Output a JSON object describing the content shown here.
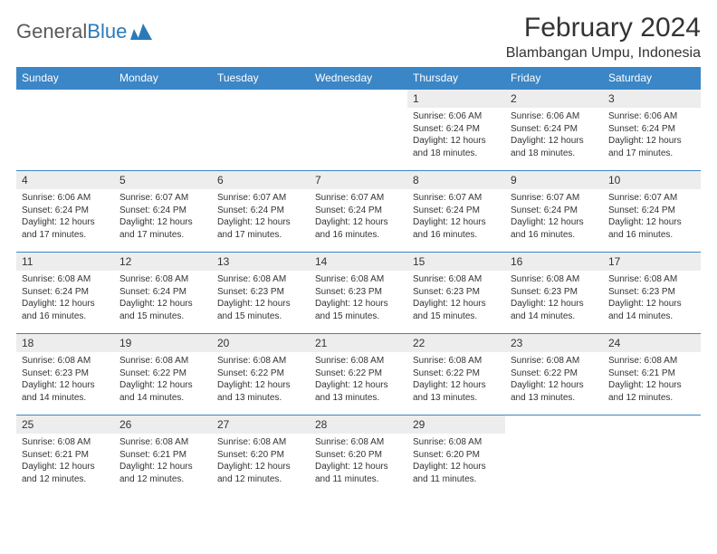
{
  "brand": {
    "text_gray": "General",
    "text_blue": "Blue"
  },
  "header": {
    "month_title": "February 2024",
    "location": "Blambangan Umpu, Indonesia"
  },
  "colors": {
    "header_bg": "#3b86c6",
    "header_text": "#ffffff",
    "daynum_bg": "#ededed",
    "border": "#3b86c6",
    "text": "#333333",
    "brand_gray": "#5a5a5a",
    "brand_blue": "#2a7ab9"
  },
  "days_of_week": [
    "Sunday",
    "Monday",
    "Tuesday",
    "Wednesday",
    "Thursday",
    "Friday",
    "Saturday"
  ],
  "weeks": [
    [
      null,
      null,
      null,
      null,
      {
        "n": "1",
        "sr": "6:06 AM",
        "ss": "6:24 PM",
        "dl": "12 hours and 18 minutes."
      },
      {
        "n": "2",
        "sr": "6:06 AM",
        "ss": "6:24 PM",
        "dl": "12 hours and 18 minutes."
      },
      {
        "n": "3",
        "sr": "6:06 AM",
        "ss": "6:24 PM",
        "dl": "12 hours and 17 minutes."
      }
    ],
    [
      {
        "n": "4",
        "sr": "6:06 AM",
        "ss": "6:24 PM",
        "dl": "12 hours and 17 minutes."
      },
      {
        "n": "5",
        "sr": "6:07 AM",
        "ss": "6:24 PM",
        "dl": "12 hours and 17 minutes."
      },
      {
        "n": "6",
        "sr": "6:07 AM",
        "ss": "6:24 PM",
        "dl": "12 hours and 17 minutes."
      },
      {
        "n": "7",
        "sr": "6:07 AM",
        "ss": "6:24 PM",
        "dl": "12 hours and 16 minutes."
      },
      {
        "n": "8",
        "sr": "6:07 AM",
        "ss": "6:24 PM",
        "dl": "12 hours and 16 minutes."
      },
      {
        "n": "9",
        "sr": "6:07 AM",
        "ss": "6:24 PM",
        "dl": "12 hours and 16 minutes."
      },
      {
        "n": "10",
        "sr": "6:07 AM",
        "ss": "6:24 PM",
        "dl": "12 hours and 16 minutes."
      }
    ],
    [
      {
        "n": "11",
        "sr": "6:08 AM",
        "ss": "6:24 PM",
        "dl": "12 hours and 16 minutes."
      },
      {
        "n": "12",
        "sr": "6:08 AM",
        "ss": "6:24 PM",
        "dl": "12 hours and 15 minutes."
      },
      {
        "n": "13",
        "sr": "6:08 AM",
        "ss": "6:23 PM",
        "dl": "12 hours and 15 minutes."
      },
      {
        "n": "14",
        "sr": "6:08 AM",
        "ss": "6:23 PM",
        "dl": "12 hours and 15 minutes."
      },
      {
        "n": "15",
        "sr": "6:08 AM",
        "ss": "6:23 PM",
        "dl": "12 hours and 15 minutes."
      },
      {
        "n": "16",
        "sr": "6:08 AM",
        "ss": "6:23 PM",
        "dl": "12 hours and 14 minutes."
      },
      {
        "n": "17",
        "sr": "6:08 AM",
        "ss": "6:23 PM",
        "dl": "12 hours and 14 minutes."
      }
    ],
    [
      {
        "n": "18",
        "sr": "6:08 AM",
        "ss": "6:23 PM",
        "dl": "12 hours and 14 minutes."
      },
      {
        "n": "19",
        "sr": "6:08 AM",
        "ss": "6:22 PM",
        "dl": "12 hours and 14 minutes."
      },
      {
        "n": "20",
        "sr": "6:08 AM",
        "ss": "6:22 PM",
        "dl": "12 hours and 13 minutes."
      },
      {
        "n": "21",
        "sr": "6:08 AM",
        "ss": "6:22 PM",
        "dl": "12 hours and 13 minutes."
      },
      {
        "n": "22",
        "sr": "6:08 AM",
        "ss": "6:22 PM",
        "dl": "12 hours and 13 minutes."
      },
      {
        "n": "23",
        "sr": "6:08 AM",
        "ss": "6:22 PM",
        "dl": "12 hours and 13 minutes."
      },
      {
        "n": "24",
        "sr": "6:08 AM",
        "ss": "6:21 PM",
        "dl": "12 hours and 12 minutes."
      }
    ],
    [
      {
        "n": "25",
        "sr": "6:08 AM",
        "ss": "6:21 PM",
        "dl": "12 hours and 12 minutes."
      },
      {
        "n": "26",
        "sr": "6:08 AM",
        "ss": "6:21 PM",
        "dl": "12 hours and 12 minutes."
      },
      {
        "n": "27",
        "sr": "6:08 AM",
        "ss": "6:20 PM",
        "dl": "12 hours and 12 minutes."
      },
      {
        "n": "28",
        "sr": "6:08 AM",
        "ss": "6:20 PM",
        "dl": "12 hours and 11 minutes."
      },
      {
        "n": "29",
        "sr": "6:08 AM",
        "ss": "6:20 PM",
        "dl": "12 hours and 11 minutes."
      },
      null,
      null
    ]
  ],
  "labels": {
    "sunrise": "Sunrise:",
    "sunset": "Sunset:",
    "daylight": "Daylight:"
  }
}
